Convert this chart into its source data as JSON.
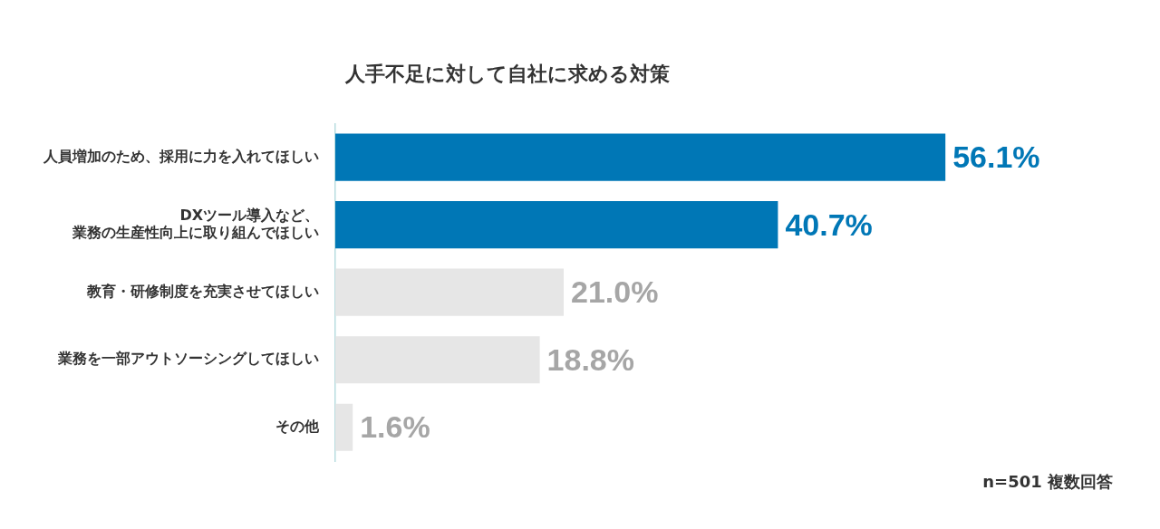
{
  "chart_data": {
    "type": "bar",
    "orientation": "horizontal",
    "title": "人手不足に対して自社に求める対策",
    "categories": [
      "人員増加のため、採用に力を入れてほしい",
      "DXツール導入など、業務の生産性向上に取り組んでほしい",
      "教育・研修制度を充実させてほしい",
      "業務を一部アウトソーシングしてほしい",
      "その他"
    ],
    "values": [
      56.1,
      40.7,
      21.0,
      18.8,
      1.6
    ],
    "colors": [
      "#0077b6",
      "#0077b6",
      "#e6e6e6",
      "#e6e6e6",
      "#e6e6e6"
    ],
    "value_labels": [
      "56.1%",
      "40.7%",
      "21.0%",
      "18.8%",
      "1.6%"
    ],
    "annotations": [
      "n=501 複数回答"
    ],
    "legend": false
  }
}
